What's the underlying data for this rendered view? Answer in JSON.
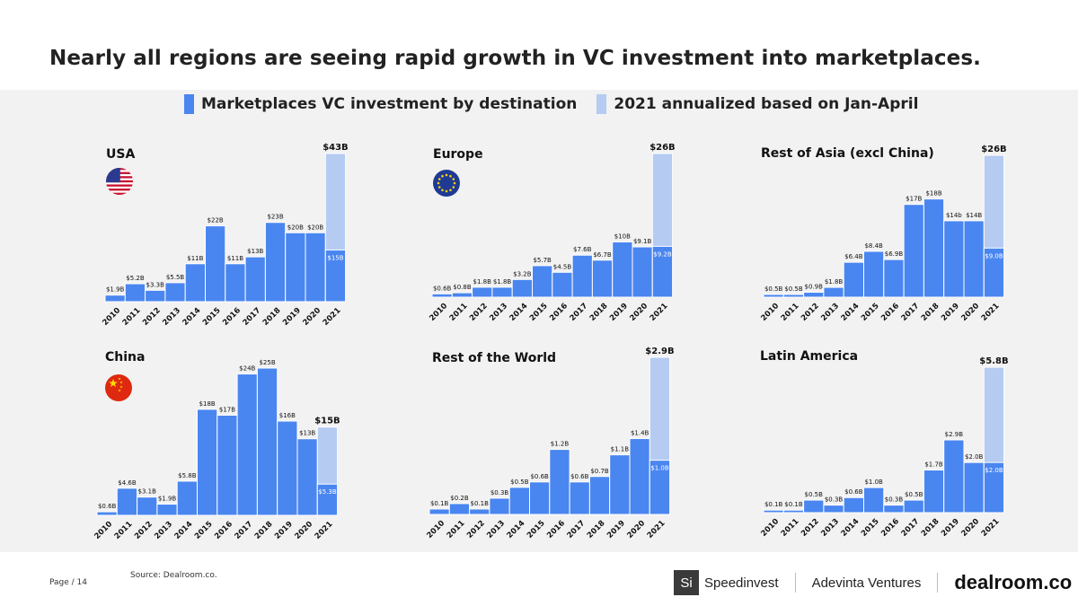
{
  "title": "Nearly all regions are seeing rapid growth in VC investment into marketplaces.",
  "legend": {
    "actual_label": "Marketplaces VC investment by destination",
    "annualized_label": "2021 annualized based on Jan-April",
    "actual_color": "#4A86F0",
    "annualized_color": "#B5CBF2"
  },
  "footer": {
    "page": "Page / 14",
    "source": "Source: Dealroom.co.",
    "logo_si": "Si",
    "logo_speedinvest": "Speedinvest",
    "logo_adevinta": "Adevinta Ventures",
    "logo_dealroom": "dealroom.co"
  },
  "chart_data": [
    {
      "type": "bar",
      "title": "USA",
      "flag": "usa-flag",
      "categories": [
        "2010",
        "2011",
        "2012",
        "2013",
        "2014",
        "2015",
        "2016",
        "2017",
        "2018",
        "2019",
        "2020",
        "2021"
      ],
      "values": [
        1.9,
        5.2,
        3.3,
        5.5,
        11,
        22,
        11,
        13,
        23,
        20,
        20,
        15
      ],
      "labels": [
        "$1.9B",
        "$5.2B",
        "$3.3B",
        "$5.5B",
        "$11B",
        "$22B",
        "$11B",
        "$13B",
        "$23B",
        "$20B",
        "$20B",
        "$15B"
      ],
      "annualized_value": 43,
      "annualized_label": "$43B"
    },
    {
      "type": "bar",
      "title": "Europe",
      "flag": "eu-flag",
      "categories": [
        "2010",
        "2011",
        "2012",
        "2013",
        "2014",
        "2015",
        "2016",
        "2017",
        "2018",
        "2019",
        "2020",
        "2021"
      ],
      "values": [
        0.6,
        0.8,
        1.8,
        1.8,
        3.2,
        5.7,
        4.5,
        7.6,
        6.7,
        10,
        9.1,
        9.2
      ],
      "labels": [
        "$0.6B",
        "$0.8B",
        "$1.8B",
        "$1.8B",
        "$3.2B",
        "$5.7B",
        "$4.5B",
        "$7.6B",
        "$6.7B",
        "$10B",
        "$9.1B",
        "$9.2B"
      ],
      "annualized_value": 26,
      "annualized_label": "$26B"
    },
    {
      "type": "bar",
      "title": "Rest of Asia (excl China)",
      "flag": "",
      "categories": [
        "2010",
        "2011",
        "2012",
        "2013",
        "2014",
        "2015",
        "2016",
        "2017",
        "2018",
        "2019",
        "2020",
        "2021"
      ],
      "values": [
        0.5,
        0.5,
        0.9,
        1.8,
        6.4,
        8.4,
        6.9,
        17,
        18,
        14,
        14,
        9.0
      ],
      "labels": [
        "$0.5B",
        "$0.5B",
        "$0.9B",
        "$1.8B",
        "$6.4B",
        "$8.4B",
        "$6.9B",
        "$17B",
        "$18B",
        "$14b",
        "$14B",
        "$9.0B"
      ],
      "annualized_value": 26,
      "annualized_label": "$26B"
    },
    {
      "type": "bar",
      "title": "China",
      "flag": "china-flag",
      "categories": [
        "2010",
        "2011",
        "2012",
        "2013",
        "2014",
        "2015",
        "2016",
        "2017",
        "2018",
        "2019",
        "2020",
        "2021"
      ],
      "values": [
        0.6,
        4.6,
        3.1,
        1.9,
        5.8,
        18,
        17,
        24,
        25,
        16,
        13,
        5.3
      ],
      "labels": [
        "$0.6B",
        "$4.6B",
        "$3.1B",
        "$1.9B",
        "$5.8B",
        "$18B",
        "$17B",
        "$24B",
        "$25B",
        "$16B",
        "$13B",
        "$5.3B"
      ],
      "annualized_value": 15,
      "annualized_label": "$15B"
    },
    {
      "type": "bar",
      "title": "Rest of the World",
      "flag": "",
      "categories": [
        "2010",
        "2011",
        "2012",
        "2013",
        "2014",
        "2015",
        "2016",
        "2017",
        "2018",
        "2019",
        "2020",
        "2021"
      ],
      "values": [
        0.1,
        0.2,
        0.1,
        0.3,
        0.5,
        0.6,
        1.2,
        0.6,
        0.7,
        1.1,
        1.4,
        1.0
      ],
      "labels": [
        "$0.1B",
        "$0.2B",
        "$0.1B",
        "$0.3B",
        "$0.5B",
        "$0.6B",
        "$1.2B",
        "$0.6B",
        "$0.7B",
        "$1.1B",
        "$1.4B",
        "$1.0B"
      ],
      "annualized_value": 2.9,
      "annualized_label": "$2.9B"
    },
    {
      "type": "bar",
      "title": "Latin America",
      "flag": "",
      "categories": [
        "2010",
        "2011",
        "2012",
        "2013",
        "2014",
        "2015",
        "2016",
        "2017",
        "2018",
        "2019",
        "2020",
        "2021"
      ],
      "values": [
        0.1,
        0.1,
        0.5,
        0.3,
        0.6,
        1.0,
        0.3,
        0.5,
        1.7,
        2.9,
        2.0,
        2.0
      ],
      "labels": [
        "$0.1B",
        "$0.1B",
        "$0.5B",
        "$0.3B",
        "$0.6B",
        "$1.0B",
        "$0.3B",
        "$0.5B",
        "$1.7B",
        "$2.9B",
        "$2.0B",
        "$2.0B"
      ],
      "annualized_value": 5.8,
      "annualized_label": "$5.8B"
    }
  ]
}
